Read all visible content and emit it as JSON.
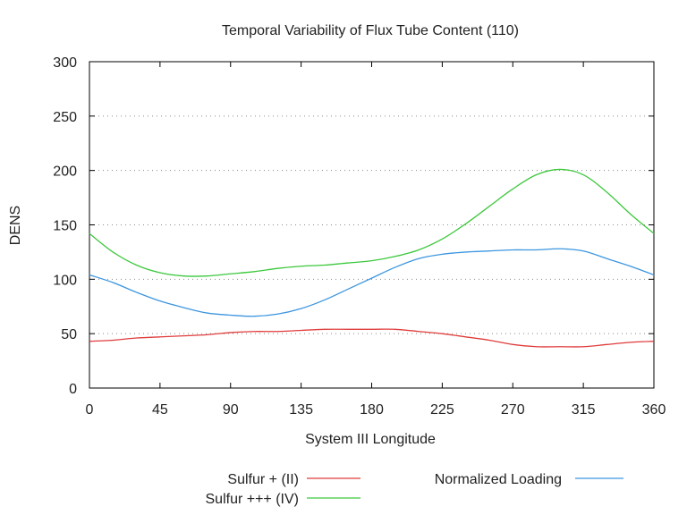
{
  "chart_data": {
    "type": "line",
    "title": "Temporal Variability of Flux Tube Content (110)",
    "xlabel": "System III Longitude",
    "ylabel": "DENS",
    "xlim": [
      0,
      360
    ],
    "ylim": [
      0,
      300
    ],
    "xticks": [
      0,
      45,
      90,
      135,
      180,
      225,
      270,
      315,
      360
    ],
    "yticks": [
      0,
      50,
      100,
      150,
      200,
      250,
      300
    ],
    "grid": "horizontal-dotted",
    "x": [
      0,
      15,
      30,
      45,
      60,
      75,
      90,
      105,
      120,
      135,
      150,
      165,
      180,
      195,
      210,
      225,
      240,
      255,
      270,
      285,
      300,
      315,
      330,
      345,
      360
    ],
    "series": [
      {
        "name": "Sulfur + (II)",
        "color": "#e03c3c",
        "values": [
          43,
          44,
          46,
          47,
          48,
          49,
          51,
          52,
          52,
          53,
          54,
          54,
          54,
          54,
          52,
          50,
          47,
          44,
          40,
          38,
          38,
          38,
          40,
          42,
          43
        ]
      },
      {
        "name": "Sulfur +++ (IV)",
        "color": "#3cc83c",
        "values": [
          142,
          125,
          113,
          106,
          103,
          103,
          105,
          107,
          110,
          112,
          113,
          115,
          117,
          121,
          127,
          137,
          151,
          167,
          183,
          196,
          201,
          196,
          180,
          160,
          142
        ]
      },
      {
        "name": "Normalized Loading",
        "color": "#3c96e0",
        "values": [
          104,
          97,
          88,
          80,
          74,
          69,
          67,
          66,
          68,
          73,
          81,
          91,
          101,
          111,
          119,
          123,
          125,
          126,
          127,
          127,
          128,
          126,
          119,
          112,
          104
        ]
      }
    ],
    "legend": "bottom"
  }
}
